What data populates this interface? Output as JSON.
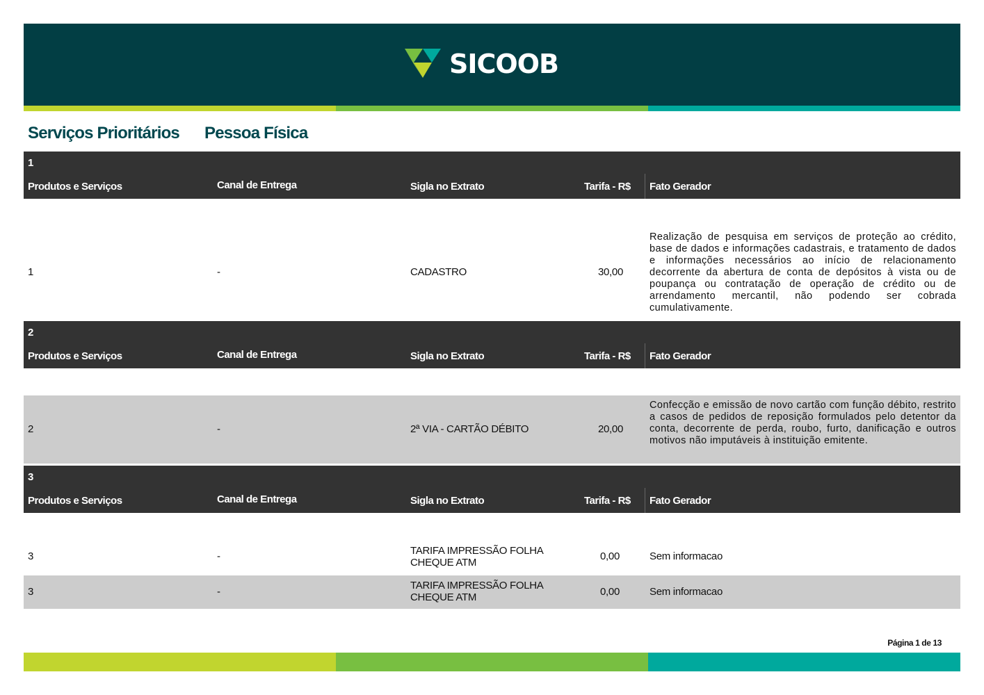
{
  "brand": {
    "name": "SICOOB",
    "colors": {
      "banner": "#023e44",
      "lime": "#c1d52f",
      "green": "#78bf41",
      "teal": "#00a99d"
    }
  },
  "title": {
    "left": "Serviços Prioritários",
    "right": "Pessoa Física"
  },
  "columns": {
    "produtos": "Produtos e Serviços",
    "canal": "Canal de Entrega",
    "sigla": "Sigla no Extrato",
    "tarifa": "Tarifa - R$",
    "fato": "Fato Gerador"
  },
  "sections": [
    {
      "number": "1",
      "rows": [
        {
          "produto": "1",
          "canal": "-",
          "sigla": "CADASTRO",
          "tarifa": "30,00",
          "fato": "Realização de pesquisa em serviços de proteção ao crédito, base de dados e informações cadastrais, e tratamento de dados e informações necessários ao início de relacionamento decorrente da abertura de conta de depósitos à vista ou de poupança ou contratação de operação de crédito ou de arrendamento mercantil, não podendo ser cobrada cumulativamente."
        }
      ]
    },
    {
      "number": "2",
      "rows": [
        {
          "produto": "2",
          "canal": "-",
          "sigla": "2ª VIA - CARTÃO DÉBITO",
          "tarifa": "20,00",
          "fato": "Confecção e emissão de novo cartão com função débito, restrito a casos de pedidos de reposição formulados pelo detentor da conta, decorrente de perda, roubo, furto, danificação e outros motivos não imputáveis à instituição emitente."
        }
      ]
    },
    {
      "number": "3",
      "rows": [
        {
          "produto": "3",
          "canal": "-",
          "sigla": "TARIFA IMPRESSÃO FOLHA CHEQUE ATM",
          "tarifa": "0,00",
          "fato": "Sem informacao"
        },
        {
          "produto": "3",
          "canal": "-",
          "sigla": "TARIFA IMPRESSÃO FOLHA CHEQUE ATM",
          "tarifa": "0,00",
          "fato": "Sem informacao"
        }
      ]
    }
  ],
  "footer": {
    "page": "Página 1 de 13"
  }
}
